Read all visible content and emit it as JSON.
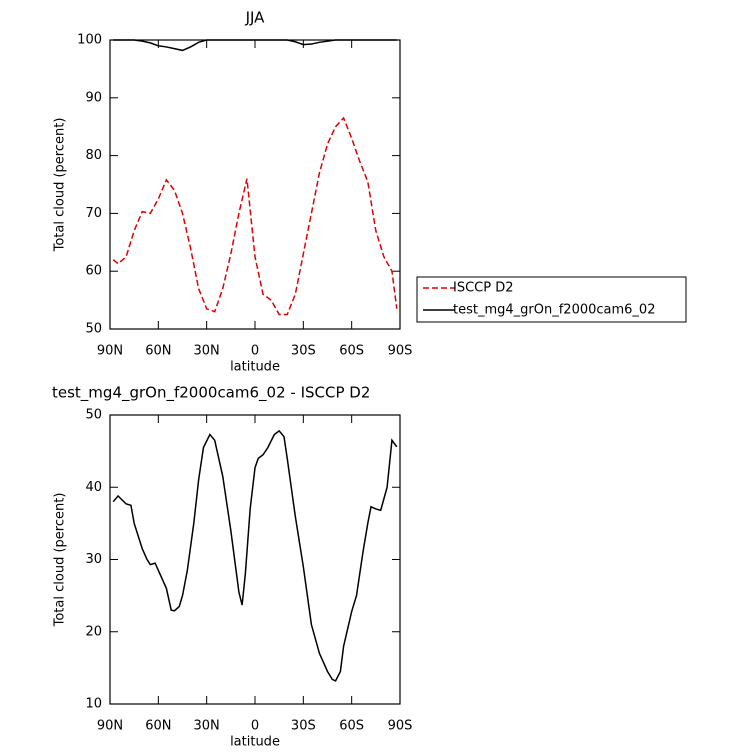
{
  "chart_data": [
    {
      "type": "line",
      "title": "JJA",
      "xlabel": "latitude",
      "ylabel": "Total cloud (percent)",
      "x": [
        88,
        85,
        80,
        75,
        70,
        65,
        60,
        55,
        50,
        45,
        40,
        35,
        30,
        25,
        20,
        15,
        10,
        5,
        0,
        -5,
        -10,
        -15,
        -20,
        -25,
        -30,
        -35,
        -40,
        -45,
        -50,
        -55,
        -60,
        -65,
        -70,
        -75,
        -80,
        -85,
        -88
      ],
      "series": [
        {
          "name": "ISCCP D2",
          "color": "#e00000",
          "dash": "dashed",
          "values": [
            62,
            61.3,
            62.5,
            67,
            70.3,
            70,
            72.5,
            75.8,
            74,
            70,
            64,
            57,
            53.5,
            53,
            57,
            63,
            70,
            76,
            62.5,
            56,
            55,
            52.5,
            52.5,
            56,
            63,
            70,
            77,
            82,
            85,
            86.5,
            83,
            79,
            75.5,
            67,
            62.5,
            60,
            53.5
          ]
        },
        {
          "name": "test_mg4_grOn_f2000cam6_02",
          "color": "#000000",
          "dash": "solid",
          "values": [
            100,
            100,
            100,
            100,
            99.8,
            99.5,
            99,
            98.8,
            98.5,
            98.2,
            98.8,
            99.6,
            100,
            100,
            100,
            100,
            100,
            100,
            100,
            100,
            100,
            100,
            100,
            99.7,
            99.2,
            99.3,
            99.6,
            99.8,
            100,
            100,
            100,
            100,
            100,
            100,
            100,
            100,
            100
          ]
        }
      ],
      "xlim": [
        90,
        -90
      ],
      "xticks": [
        {
          "value": 90,
          "label": "90N"
        },
        {
          "value": 60,
          "label": "60N"
        },
        {
          "value": 30,
          "label": "30N"
        },
        0,
        {
          "value": -30,
          "label": "30S"
        },
        {
          "value": -60,
          "label": "60S"
        },
        {
          "value": -90,
          "label": "90S"
        }
      ],
      "ylim": [
        50,
        100
      ],
      "yticks": [
        50,
        60,
        70,
        80,
        90,
        100
      ],
      "legend": "right"
    },
    {
      "type": "line",
      "title": "test_mg4_grOn_f2000cam6_02 - ISCCP D2",
      "xlabel": "latitude",
      "ylabel": "Total cloud (percent)",
      "x": [
        88,
        85,
        80,
        77,
        75,
        70,
        67,
        65,
        62,
        60,
        55,
        52,
        50,
        47,
        45,
        42,
        38,
        35,
        32,
        28,
        25,
        20,
        15,
        10,
        8,
        6,
        3,
        0,
        -2,
        -5,
        -8,
        -12,
        -15,
        -18,
        -20,
        -25,
        -30,
        -35,
        -40,
        -45,
        -48,
        -50,
        -53,
        -55,
        -60,
        -63,
        -67,
        -70,
        -72,
        -75,
        -78,
        -82,
        -85,
        -88
      ],
      "series": [
        {
          "color": "#000000",
          "dash": "solid",
          "values": [
            38,
            38.8,
            37.7,
            37.5,
            35,
            31.5,
            30,
            29.3,
            29.5,
            28.5,
            26,
            23,
            22.9,
            23.5,
            25,
            28.5,
            35,
            41,
            45.5,
            47.3,
            46.5,
            41.5,
            34,
            25.5,
            23.7,
            28,
            37,
            42.7,
            44,
            44.5,
            45.5,
            47.3,
            47.8,
            47,
            44,
            36,
            29,
            21,
            17,
            14.5,
            13.4,
            13.2,
            14.5,
            18,
            22.8,
            25,
            31,
            35,
            37.3,
            37,
            36.8,
            40,
            46.5,
            45.6
          ]
        }
      ],
      "xlim": [
        90,
        -90
      ],
      "xticks": [
        {
          "value": 90,
          "label": "90N"
        },
        {
          "value": 60,
          "label": "60N"
        },
        {
          "value": 30,
          "label": "30N"
        },
        0,
        {
          "value": -30,
          "label": "30S"
        },
        {
          "value": -60,
          "label": "60S"
        },
        {
          "value": -90,
          "label": "90S"
        }
      ],
      "ylim": [
        10,
        50
      ],
      "yticks": [
        10,
        20,
        30,
        40,
        50
      ]
    }
  ]
}
